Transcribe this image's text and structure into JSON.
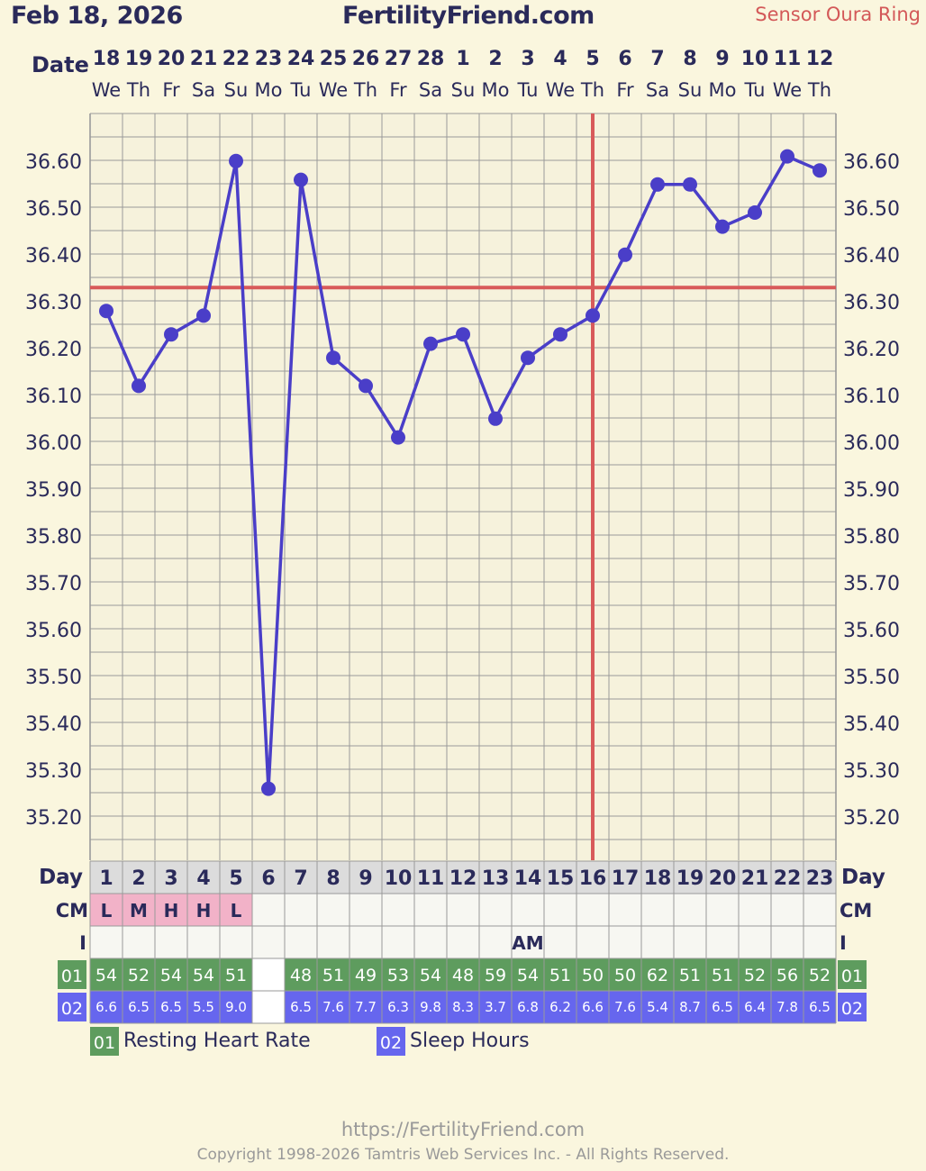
{
  "header": {
    "date": "Feb 18, 2026",
    "site": "FertilityFriend.com",
    "sensor": "Sensor Oura Ring"
  },
  "labels": {
    "date": "Date",
    "day": "Day",
    "cm": "CM",
    "i": "I",
    "rhr_code": "01",
    "sleep_code": "02"
  },
  "legend": [
    {
      "code": "01",
      "label": "Resting Heart Rate",
      "color": "#5e9c5e"
    },
    {
      "code": "02",
      "label": "Sleep Hours",
      "color": "#6666ee"
    }
  ],
  "footer": {
    "url": "https://FertilityFriend.com",
    "copyright": "Copyright 1998-2026 Tamtris Web Services Inc. - All Rights Reserved."
  },
  "colors": {
    "line": "#4a3ec8",
    "coverline": "#d85a5a",
    "grid": "#9a9a9a",
    "cm_fill": "#f2b2c8",
    "rhr_fill": "#5e9c5e",
    "sleep_fill": "#6666ee",
    "text": "#2a2a5a"
  },
  "chart_data": {
    "type": "line",
    "dates": [
      "18",
      "19",
      "20",
      "21",
      "22",
      "23",
      "24",
      "25",
      "26",
      "27",
      "28",
      "1",
      "2",
      "3",
      "4",
      "5",
      "6",
      "7",
      "8",
      "9",
      "10",
      "11",
      "12"
    ],
    "weekdays": [
      "We",
      "Th",
      "Fr",
      "Sa",
      "Su",
      "Mo",
      "Tu",
      "We",
      "Th",
      "Fr",
      "Sa",
      "Su",
      "Mo",
      "Tu",
      "We",
      "Th",
      "Fr",
      "Sa",
      "Su",
      "Mo",
      "Tu",
      "We",
      "Th"
    ],
    "cycle_days": [
      1,
      2,
      3,
      4,
      5,
      6,
      7,
      8,
      9,
      10,
      11,
      12,
      13,
      14,
      15,
      16,
      17,
      18,
      19,
      20,
      21,
      22,
      23
    ],
    "temperatures": [
      36.28,
      36.12,
      36.23,
      36.27,
      36.6,
      35.26,
      36.56,
      36.18,
      36.12,
      36.01,
      36.21,
      36.23,
      36.05,
      36.18,
      36.23,
      36.27,
      36.4,
      36.55,
      36.55,
      36.46,
      36.49,
      36.61,
      36.58
    ],
    "y_ticks": [
      "36.60",
      "36.50",
      "36.40",
      "36.30",
      "36.20",
      "36.10",
      "36.00",
      "35.90",
      "35.80",
      "35.70",
      "35.60",
      "35.50",
      "35.40",
      "35.30",
      "35.20"
    ],
    "ylim": [
      35.12,
      36.7
    ],
    "coverline": 36.33,
    "ovulation_day": 16,
    "cervical_mucus": [
      "L",
      "M",
      "H",
      "H",
      "L",
      "",
      "",
      "",
      "",
      "",
      "",
      "",
      "",
      "",
      "",
      "",
      "",
      "",
      "",
      "",
      "",
      "",
      ""
    ],
    "intercourse": [
      "",
      "",
      "",
      "",
      "",
      "",
      "",
      "",
      "",
      "",
      "",
      "",
      "",
      "AM",
      "",
      "",
      "",
      "",
      "",
      "",
      "",
      "",
      ""
    ],
    "resting_heart_rate": [
      "54",
      "52",
      "54",
      "54",
      "51",
      "",
      "48",
      "51",
      "49",
      "53",
      "54",
      "48",
      "59",
      "54",
      "51",
      "50",
      "50",
      "62",
      "51",
      "51",
      "52",
      "56",
      "52"
    ],
    "sleep_hours": [
      "6.6",
      "6.5",
      "6.5",
      "5.5",
      "9.0",
      "",
      "6.5",
      "7.6",
      "7.7",
      "6.3",
      "9.8",
      "8.3",
      "3.7",
      "6.8",
      "6.2",
      "6.6",
      "7.6",
      "5.4",
      "8.7",
      "6.5",
      "6.4",
      "7.8",
      "6.5"
    ]
  }
}
